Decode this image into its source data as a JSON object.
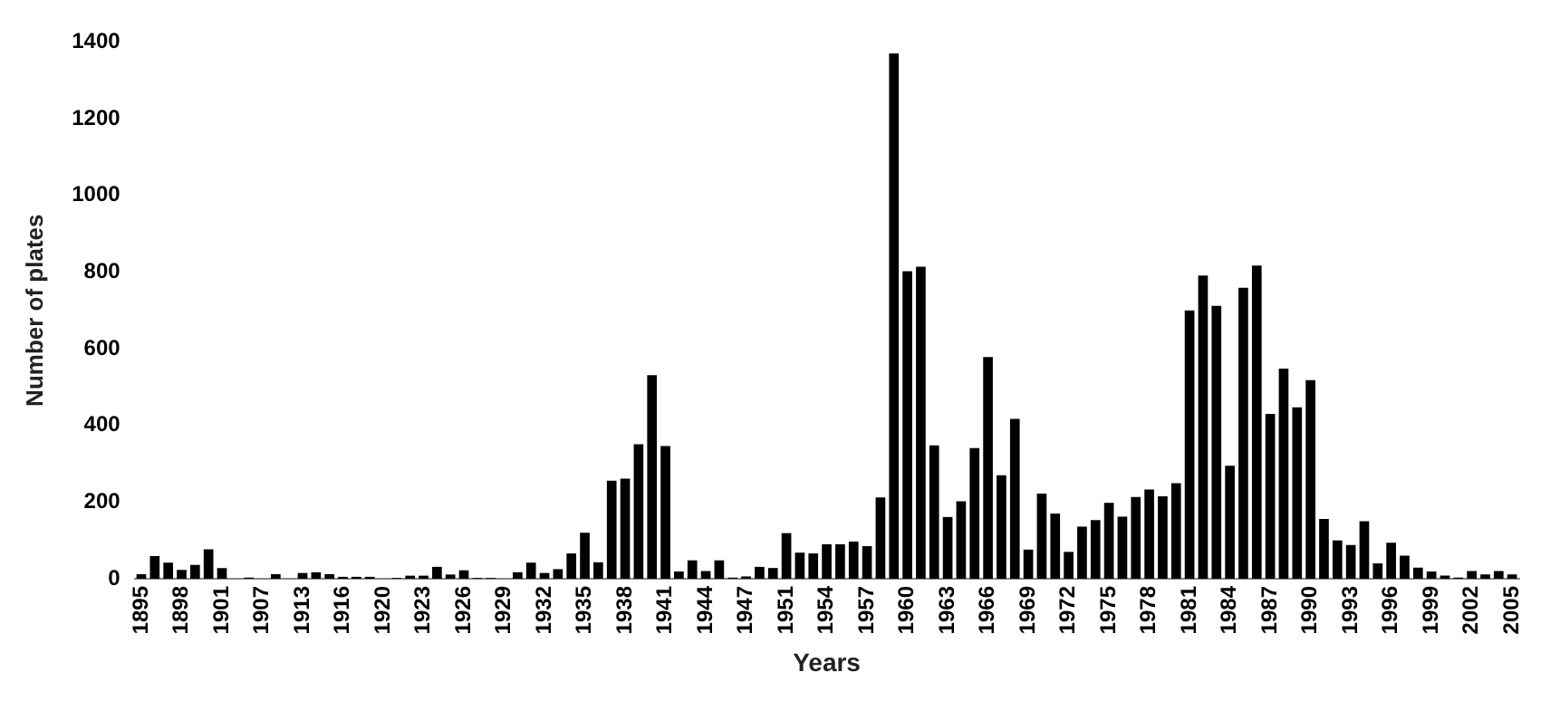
{
  "chart_data": {
    "type": "bar",
    "xlabel": "Years",
    "ylabel": "Number of plates",
    "categories": [
      "1895",
      null,
      null,
      "1898",
      null,
      null,
      "1901",
      null,
      null,
      "1907",
      null,
      null,
      "1913",
      null,
      null,
      "1916",
      null,
      null,
      "1920",
      null,
      null,
      "1923",
      null,
      null,
      "1926",
      null,
      null,
      "1929",
      null,
      null,
      "1932",
      null,
      null,
      "1935",
      null,
      null,
      "1938",
      null,
      null,
      "1941",
      null,
      null,
      "1944",
      null,
      null,
      "1947",
      null,
      null,
      "1951",
      null,
      null,
      "1954",
      null,
      null,
      "1957",
      null,
      null,
      "1960",
      null,
      null,
      "1963",
      null,
      null,
      "1966",
      null,
      null,
      "1969",
      null,
      null,
      "1972",
      null,
      null,
      "1975",
      null,
      null,
      "1978",
      null,
      null,
      "1981",
      null,
      null,
      "1984",
      null,
      null,
      "1987",
      null,
      null,
      "1990",
      null,
      null,
      "1993",
      null,
      null,
      "1996",
      null,
      null,
      "1999",
      null,
      null,
      "2002",
      null,
      null,
      "2005"
    ],
    "values": [
      12,
      59,
      42,
      23,
      36,
      77,
      28,
      0,
      3,
      0,
      12,
      0,
      15,
      17,
      12,
      5,
      5,
      5,
      0,
      2,
      8,
      8,
      31,
      11,
      22,
      2,
      2,
      0,
      17,
      42,
      15,
      25,
      66,
      120,
      43,
      256,
      261,
      351,
      531,
      346,
      19,
      48,
      20,
      48,
      3,
      6,
      31,
      28,
      119,
      68,
      66,
      90,
      90,
      97,
      85,
      212,
      1370,
      802,
      814,
      348,
      161,
      202,
      341,
      578,
      270,
      417,
      76,
      222,
      170,
      70,
      136,
      153,
      198,
      162,
      213,
      233,
      215,
      249,
      700,
      791,
      712,
      295,
      759,
      817,
      430,
      548,
      447,
      518,
      156,
      100,
      88,
      150,
      40,
      94,
      60,
      29,
      19,
      8,
      3,
      20,
      11,
      20,
      11
    ],
    "color": "#000000",
    "ylim": [
      0,
      1400
    ],
    "yticks": [
      0,
      200,
      400,
      600,
      800,
      1000,
      1200,
      1400
    ],
    "grid": false,
    "legend": false
  }
}
